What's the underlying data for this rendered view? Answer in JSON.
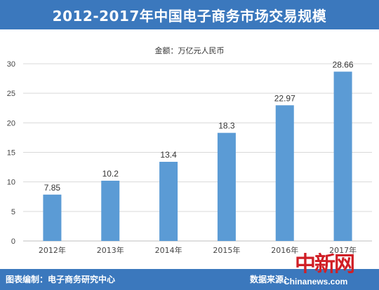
{
  "header": {
    "title": "2012-2017年中国电子商务市场交易规模"
  },
  "chart_data": {
    "type": "bar",
    "title": "2012-2017年中国电子商务市场交易规模",
    "subtitle": "金额：万亿元人民币",
    "categories": [
      "2012年",
      "2013年",
      "2014年",
      "2015年",
      "2016年",
      "2017年"
    ],
    "values": [
      7.85,
      10.2,
      13.4,
      18.3,
      22.97,
      28.66
    ],
    "value_labels": [
      "7.85",
      "10.2",
      "13.4",
      "18.3",
      "22.97",
      "28.66"
    ],
    "ylim": [
      0,
      30
    ],
    "yticks": [
      0,
      5,
      10,
      15,
      20,
      25,
      30
    ],
    "grid": true,
    "bar_color": "#5b9bd5"
  },
  "footer": {
    "left": "图表编制：电子商务研究中心",
    "right": "数据来源："
  },
  "watermark": {
    "logo": "中新网",
    "site": "Chinanews.com"
  }
}
